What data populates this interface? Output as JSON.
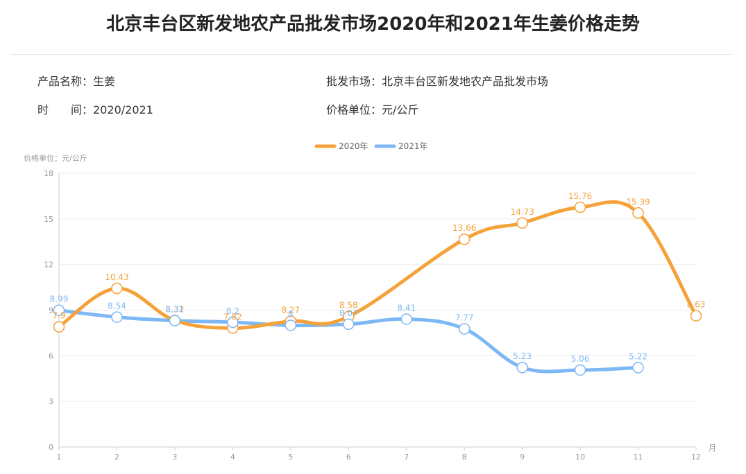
{
  "page": {
    "title": "北京丰台区新发地农产品批发市场2020年和2021年生姜价格走势",
    "info": {
      "product_label": "产品名称：",
      "product_value": "生姜",
      "market_label": "批发市场：",
      "market_value": "北京丰台区新发地农产品批发市场",
      "time_label_1": "时",
      "time_label_2": "间：",
      "time_value": "2020/2021",
      "unit_label": "价格单位：",
      "unit_value": "元/公斤"
    }
  },
  "chart_data": {
    "type": "line",
    "ylabel": "价格单位：元/公斤",
    "xlabel": "月",
    "categories": [
      "1",
      "2",
      "3",
      "4",
      "5",
      "6",
      "7",
      "8",
      "9",
      "10",
      "11",
      "12"
    ],
    "ylim": [
      0,
      18
    ],
    "yticks": [
      "0",
      "3",
      "6",
      "9",
      "12",
      "15",
      "18"
    ],
    "legend_position": "top-center",
    "grid": true,
    "series": [
      {
        "name": "2020年",
        "color": "#F5A23A",
        "values": [
          7.9,
          10.43,
          8.32,
          7.82,
          8.27,
          8.58,
          null,
          13.66,
          14.73,
          15.76,
          15.39,
          8.63
        ],
        "labels": [
          "7.9",
          "10.43",
          "8.32",
          "7.82",
          "8.27",
          "8.58",
          "",
          "13.66",
          "14.73",
          "15.76",
          "15.39",
          "8.63"
        ]
      },
      {
        "name": "2021年",
        "color": "#7DB8F5",
        "values": [
          8.99,
          8.54,
          8.31,
          8.2,
          8,
          8.07,
          8.41,
          7.77,
          5.23,
          5.06,
          5.22,
          null
        ],
        "labels": [
          "8.99",
          "8.54",
          "8.31",
          "8.2",
          "8",
          "8.07",
          "8.41",
          "7.77",
          "5.23",
          "5.06",
          "5.22",
          ""
        ]
      }
    ]
  }
}
